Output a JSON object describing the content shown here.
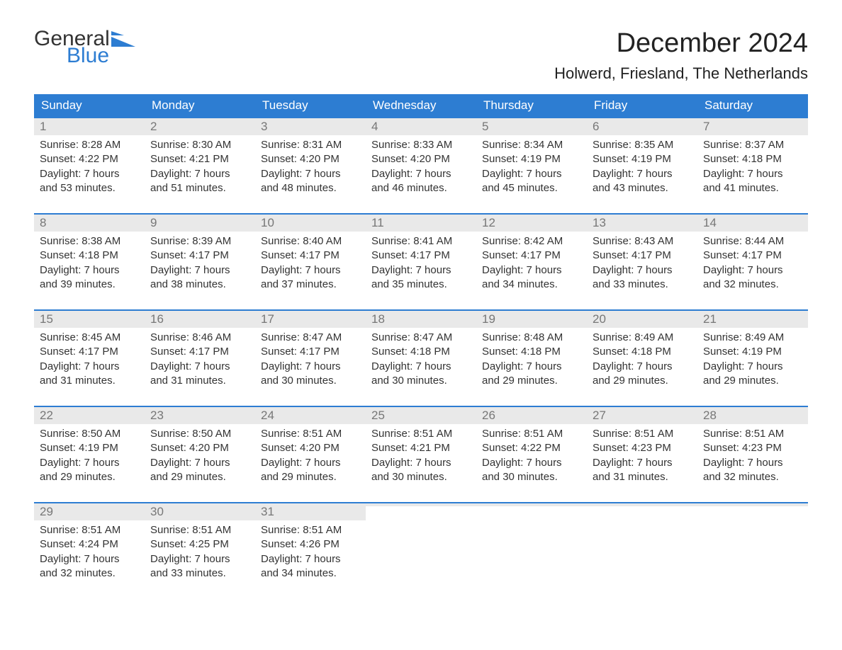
{
  "brand": {
    "word1": "General",
    "word2": "Blue",
    "icon_color": "#2d7dd2"
  },
  "title": "December 2024",
  "location": "Holwerd, Friesland, The Netherlands",
  "colors": {
    "header_bg": "#2d7dd2",
    "header_fg": "#ffffff",
    "week_rule": "#2d7dd2",
    "daynum_bg": "#e9e9e9",
    "daynum_fg": "#777777",
    "body_fg": "#333333",
    "page_bg": "#ffffff"
  },
  "fonts": {
    "title_pt": 38,
    "location_pt": 22,
    "dow_pt": 17,
    "daynum_pt": 17,
    "body_pt": 15
  },
  "dow": [
    "Sunday",
    "Monday",
    "Tuesday",
    "Wednesday",
    "Thursday",
    "Friday",
    "Saturday"
  ],
  "labels": {
    "sunrise": "Sunrise:",
    "sunset": "Sunset:",
    "daylight": "Daylight:"
  },
  "weeks": [
    [
      {
        "n": "1",
        "sunrise": "8:28 AM",
        "sunset": "4:22 PM",
        "dl1": "7 hours",
        "dl2": "and 53 minutes."
      },
      {
        "n": "2",
        "sunrise": "8:30 AM",
        "sunset": "4:21 PM",
        "dl1": "7 hours",
        "dl2": "and 51 minutes."
      },
      {
        "n": "3",
        "sunrise": "8:31 AM",
        "sunset": "4:20 PM",
        "dl1": "7 hours",
        "dl2": "and 48 minutes."
      },
      {
        "n": "4",
        "sunrise": "8:33 AM",
        "sunset": "4:20 PM",
        "dl1": "7 hours",
        "dl2": "and 46 minutes."
      },
      {
        "n": "5",
        "sunrise": "8:34 AM",
        "sunset": "4:19 PM",
        "dl1": "7 hours",
        "dl2": "and 45 minutes."
      },
      {
        "n": "6",
        "sunrise": "8:35 AM",
        "sunset": "4:19 PM",
        "dl1": "7 hours",
        "dl2": "and 43 minutes."
      },
      {
        "n": "7",
        "sunrise": "8:37 AM",
        "sunset": "4:18 PM",
        "dl1": "7 hours",
        "dl2": "and 41 minutes."
      }
    ],
    [
      {
        "n": "8",
        "sunrise": "8:38 AM",
        "sunset": "4:18 PM",
        "dl1": "7 hours",
        "dl2": "and 39 minutes."
      },
      {
        "n": "9",
        "sunrise": "8:39 AM",
        "sunset": "4:17 PM",
        "dl1": "7 hours",
        "dl2": "and 38 minutes."
      },
      {
        "n": "10",
        "sunrise": "8:40 AM",
        "sunset": "4:17 PM",
        "dl1": "7 hours",
        "dl2": "and 37 minutes."
      },
      {
        "n": "11",
        "sunrise": "8:41 AM",
        "sunset": "4:17 PM",
        "dl1": "7 hours",
        "dl2": "and 35 minutes."
      },
      {
        "n": "12",
        "sunrise": "8:42 AM",
        "sunset": "4:17 PM",
        "dl1": "7 hours",
        "dl2": "and 34 minutes."
      },
      {
        "n": "13",
        "sunrise": "8:43 AM",
        "sunset": "4:17 PM",
        "dl1": "7 hours",
        "dl2": "and 33 minutes."
      },
      {
        "n": "14",
        "sunrise": "8:44 AM",
        "sunset": "4:17 PM",
        "dl1": "7 hours",
        "dl2": "and 32 minutes."
      }
    ],
    [
      {
        "n": "15",
        "sunrise": "8:45 AM",
        "sunset": "4:17 PM",
        "dl1": "7 hours",
        "dl2": "and 31 minutes."
      },
      {
        "n": "16",
        "sunrise": "8:46 AM",
        "sunset": "4:17 PM",
        "dl1": "7 hours",
        "dl2": "and 31 minutes."
      },
      {
        "n": "17",
        "sunrise": "8:47 AM",
        "sunset": "4:17 PM",
        "dl1": "7 hours",
        "dl2": "and 30 minutes."
      },
      {
        "n": "18",
        "sunrise": "8:47 AM",
        "sunset": "4:18 PM",
        "dl1": "7 hours",
        "dl2": "and 30 minutes."
      },
      {
        "n": "19",
        "sunrise": "8:48 AM",
        "sunset": "4:18 PM",
        "dl1": "7 hours",
        "dl2": "and 29 minutes."
      },
      {
        "n": "20",
        "sunrise": "8:49 AM",
        "sunset": "4:18 PM",
        "dl1": "7 hours",
        "dl2": "and 29 minutes."
      },
      {
        "n": "21",
        "sunrise": "8:49 AM",
        "sunset": "4:19 PM",
        "dl1": "7 hours",
        "dl2": "and 29 minutes."
      }
    ],
    [
      {
        "n": "22",
        "sunrise": "8:50 AM",
        "sunset": "4:19 PM",
        "dl1": "7 hours",
        "dl2": "and 29 minutes."
      },
      {
        "n": "23",
        "sunrise": "8:50 AM",
        "sunset": "4:20 PM",
        "dl1": "7 hours",
        "dl2": "and 29 minutes."
      },
      {
        "n": "24",
        "sunrise": "8:51 AM",
        "sunset": "4:20 PM",
        "dl1": "7 hours",
        "dl2": "and 29 minutes."
      },
      {
        "n": "25",
        "sunrise": "8:51 AM",
        "sunset": "4:21 PM",
        "dl1": "7 hours",
        "dl2": "and 30 minutes."
      },
      {
        "n": "26",
        "sunrise": "8:51 AM",
        "sunset": "4:22 PM",
        "dl1": "7 hours",
        "dl2": "and 30 minutes."
      },
      {
        "n": "27",
        "sunrise": "8:51 AM",
        "sunset": "4:23 PM",
        "dl1": "7 hours",
        "dl2": "and 31 minutes."
      },
      {
        "n": "28",
        "sunrise": "8:51 AM",
        "sunset": "4:23 PM",
        "dl1": "7 hours",
        "dl2": "and 32 minutes."
      }
    ],
    [
      {
        "n": "29",
        "sunrise": "8:51 AM",
        "sunset": "4:24 PM",
        "dl1": "7 hours",
        "dl2": "and 32 minutes."
      },
      {
        "n": "30",
        "sunrise": "8:51 AM",
        "sunset": "4:25 PM",
        "dl1": "7 hours",
        "dl2": "and 33 minutes."
      },
      {
        "n": "31",
        "sunrise": "8:51 AM",
        "sunset": "4:26 PM",
        "dl1": "7 hours",
        "dl2": "and 34 minutes."
      },
      {
        "empty": true
      },
      {
        "empty": true
      },
      {
        "empty": true
      },
      {
        "empty": true
      }
    ]
  ]
}
